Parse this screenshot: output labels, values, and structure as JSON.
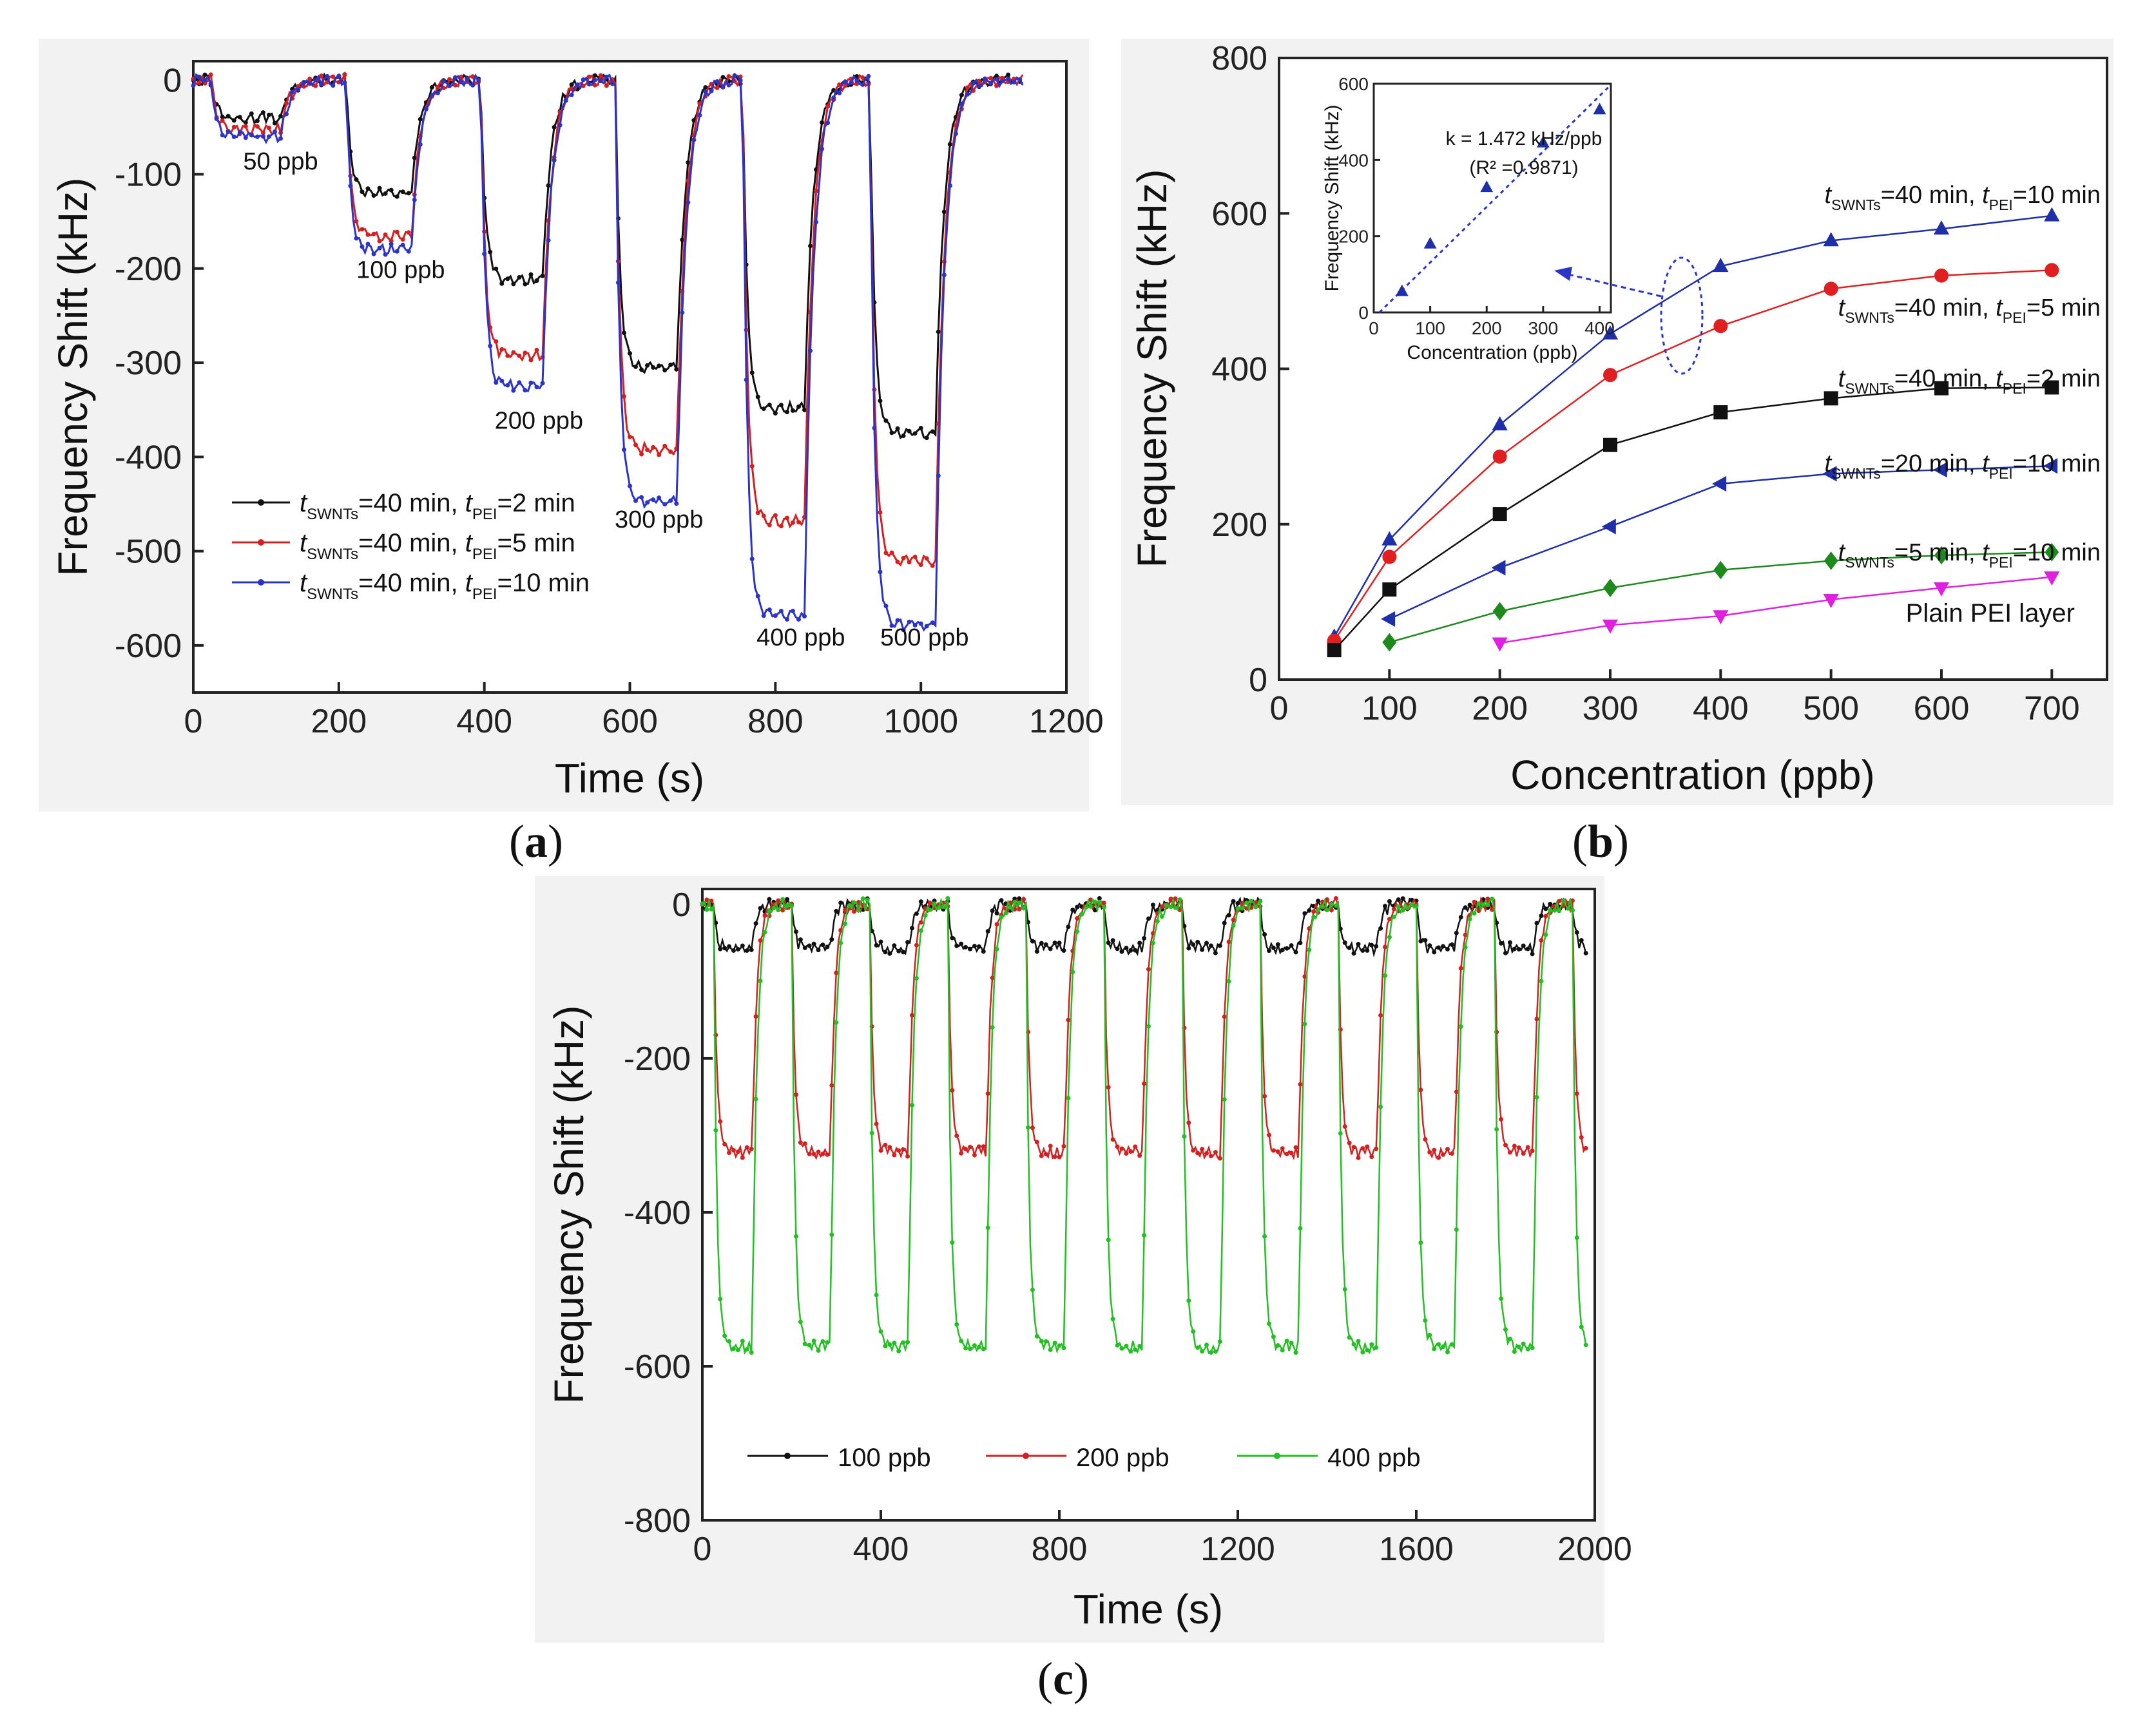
{
  "chart_data": [
    {
      "panel_label": "a",
      "type": "line",
      "xlabel": "Time (s)",
      "ylabel": "Frequency Shift (kHz)",
      "xlim": [
        0,
        1200
      ],
      "ylim": [
        -650,
        20
      ],
      "xticks": [
        0,
        200,
        400,
        600,
        800,
        1000,
        1200
      ],
      "yticks": [
        0,
        -100,
        -200,
        -300,
        -400,
        -500,
        -600
      ],
      "x_tick_labels": [
        "0",
        "200",
        "400",
        "600",
        "800",
        "1000",
        "1200"
      ],
      "y_tick_labels": [
        "0",
        "-100",
        "-200",
        "-300",
        "-400",
        "-500",
        "-600"
      ],
      "pulses": [
        {
          "start": 25,
          "end": 120,
          "label": "50 ppb"
        },
        {
          "start": 210,
          "end": 300,
          "label": "100 ppb"
        },
        {
          "start": 395,
          "end": 480,
          "label": "200 ppb"
        },
        {
          "start": 580,
          "end": 665,
          "label": "300 ppb"
        },
        {
          "start": 755,
          "end": 840,
          "label": "400 ppb"
        },
        {
          "start": 930,
          "end": 1020,
          "label": "500 ppb"
        }
      ],
      "series": [
        {
          "name": "tSWNTs=40 min, tPEI=2 min",
          "sub1": "SWNTs",
          "rest1": "=40 min, ",
          "sub2": "PEI",
          "rest2": "=2 min",
          "color": "#111111",
          "plateaus": [
            -40,
            -120,
            -212,
            -305,
            -348,
            -375
          ]
        },
        {
          "name": "tSWNTs=40 min, tPEI=5 min",
          "sub1": "SWNTs",
          "rest1": "=40 min, ",
          "sub2": "PEI",
          "rest2": "=5 min",
          "color": "#d42020",
          "plateaus": [
            -52,
            -165,
            -292,
            -392,
            -468,
            -510
          ]
        },
        {
          "name": "tSWNTs=40 min, tPEI=10 min",
          "sub1": "SWNTs",
          "rest1": "=40 min, ",
          "sub2": "PEI",
          "rest2": "=10 min",
          "color": "#2b33c8",
          "plateaus": [
            -60,
            -180,
            -325,
            -448,
            -568,
            -578
          ]
        }
      ],
      "legend_position": "bottom-left"
    },
    {
      "panel_label": "b",
      "type": "line",
      "xlabel": "Concentration (ppb)",
      "ylabel": "Frequency Shift (kHz)",
      "xlim": [
        0,
        750
      ],
      "ylim": [
        0,
        800
      ],
      "xticks": [
        0,
        100,
        200,
        300,
        400,
        500,
        600,
        700
      ],
      "yticks": [
        0,
        200,
        400,
        600,
        800
      ],
      "x_tick_labels": [
        "0",
        "100",
        "200",
        "300",
        "400",
        "500",
        "600",
        "700"
      ],
      "y_tick_labels": [
        "0",
        "200",
        "400",
        "600",
        "800"
      ],
      "series": [
        {
          "name": "tSWNTs=40 min, tPEI=10 min",
          "sub1": "SWNTs",
          "rest1": "=40 min, ",
          "sub2": "PEI",
          "rest2": "=10 min",
          "marker": "triangle-up",
          "color": "#1f2fa8",
          "x": [
            50,
            100,
            200,
            300,
            400,
            500,
            600,
            700
          ],
          "y": [
            55,
            180,
            328,
            445,
            532,
            565,
            580,
            597
          ]
        },
        {
          "name": "tSWNTs=40 min, tPEI=5 min",
          "sub1": "SWNTs",
          "rest1": "=40 min, ",
          "sub2": "PEI",
          "rest2": "=5 min",
          "marker": "circle",
          "color": "#e02020",
          "x": [
            50,
            100,
            200,
            300,
            400,
            500,
            600,
            700
          ],
          "y": [
            50,
            158,
            287,
            392,
            455,
            503,
            520,
            527
          ]
        },
        {
          "name": "tSWNTs=40 min, tPEI=2 min",
          "sub1": "SWNTs",
          "rest1": "=40 min, ",
          "sub2": "PEI",
          "rest2": "=2 min",
          "marker": "square",
          "color": "#111111",
          "x": [
            50,
            100,
            200,
            300,
            400,
            500,
            600,
            700
          ],
          "y": [
            38,
            116,
            213,
            302,
            344,
            362,
            375,
            376
          ]
        },
        {
          "name": "tSWNTs=20 min, tPEI=10 min",
          "sub1": "SWNTs",
          "rest1": "=20 min, ",
          "sub2": "PEI",
          "rest2": "=10 min",
          "marker": "triangle-left",
          "color": "#1f2fa8",
          "x": [
            100,
            200,
            300,
            400,
            500,
            600,
            700
          ],
          "y": [
            78,
            144,
            197,
            252,
            265,
            270,
            275
          ]
        },
        {
          "name": "tSWNTs=5 min, tPEI=10 min",
          "sub1": "SWNTs",
          "rest1": "=5 min, ",
          "sub2": "PEI",
          "rest2": "=10 min",
          "marker": "diamond",
          "color": "#1e8a1e",
          "x": [
            100,
            200,
            300,
            400,
            500,
            600,
            700
          ],
          "y": [
            48,
            88,
            118,
            141,
            153,
            160,
            164
          ]
        },
        {
          "name": "Plain PEI layer",
          "marker": "triangle-down",
          "color": "#e020e0",
          "x": [
            200,
            300,
            400,
            500,
            600,
            700
          ],
          "y": [
            47,
            70,
            82,
            103,
            118,
            132
          ]
        }
      ],
      "inset": {
        "type": "scatter",
        "xlabel": "Concentration (ppb)",
        "ylabel": "Frequency Shift (kHz)",
        "xlim": [
          0,
          420
        ],
        "ylim": [
          0,
          600
        ],
        "xticks": [
          0,
          100,
          200,
          300,
          400
        ],
        "yticks": [
          0,
          200,
          400,
          600
        ],
        "x_tick_labels": [
          "0",
          "100",
          "200",
          "300",
          "400"
        ],
        "y_tick_labels": [
          "0",
          "200",
          "400",
          "600"
        ],
        "x": [
          50,
          100,
          200,
          300,
          400
        ],
        "y": [
          55,
          180,
          328,
          445,
          532
        ],
        "fit_label": "k = 1.472 kHz/ppb",
        "r2_label": "(R² =0.9871)"
      }
    },
    {
      "panel_label": "c",
      "type": "line",
      "xlabel": "Time (s)",
      "ylabel": "Frequency Shift (kHz)",
      "xlim": [
        0,
        2000
      ],
      "ylim": [
        -800,
        20
      ],
      "xticks": [
        0,
        400,
        800,
        1200,
        1600,
        2000
      ],
      "yticks": [
        0,
        -200,
        -400,
        -600,
        -800
      ],
      "x_tick_labels": [
        "0",
        "400",
        "800",
        "1200",
        "1600",
        "2000"
      ],
      "y_tick_labels": [
        "0",
        "-200",
        "-400",
        "-600",
        "-800"
      ],
      "cycle_period_s": 175,
      "cycles": 11,
      "series": [
        {
          "name": "100 ppb",
          "color": "#111111",
          "plateau": -57
        },
        {
          "name": "200 ppb",
          "color": "#d42020",
          "plateau": -322
        },
        {
          "name": "400 ppb",
          "color": "#22c022",
          "plateau": -575
        }
      ],
      "legend_position": "bottom"
    }
  ],
  "captions": {
    "a": "a",
    "b": "b",
    "c": "c"
  }
}
